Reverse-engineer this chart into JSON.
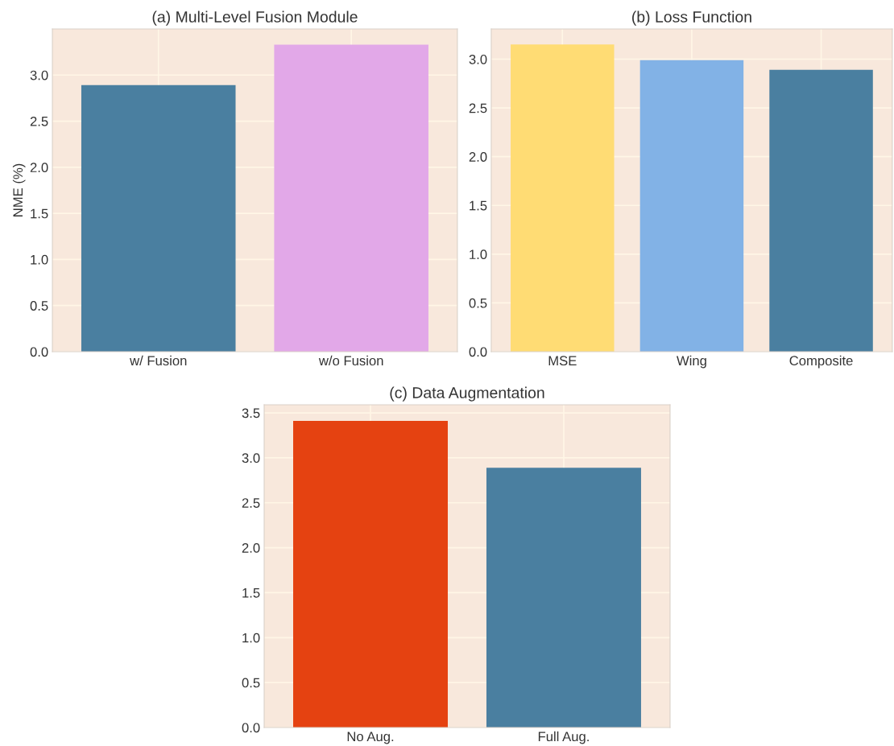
{
  "chart_data": [
    {
      "type": "bar",
      "title": "(a) Multi-Level Fusion Module",
      "ylabel": "NME (%)",
      "categories": [
        "w/ Fusion",
        "w/o Fusion"
      ],
      "values": [
        2.89,
        3.33
      ],
      "colors": [
        "#4a7fa0",
        "#e2a8e8"
      ],
      "ylim": [
        0,
        3.5
      ],
      "yticks": [
        {
          "value": 0,
          "label": "0.0"
        },
        0.5,
        {
          "value": 1,
          "label": "1.0"
        },
        1.5,
        {
          "value": 2,
          "label": "2.0"
        },
        2.5,
        {
          "value": 3,
          "label": "3.0"
        }
      ],
      "grid": true
    },
    {
      "type": "bar",
      "title": "(b) Loss Function",
      "categories": [
        "MSE",
        "Wing",
        "Composite"
      ],
      "values": [
        3.15,
        2.99,
        2.89
      ],
      "colors": [
        "#ffdc74",
        "#82b2e6",
        "#4a7fa0"
      ],
      "ylim": [
        0,
        3.31
      ],
      "yticks": [
        {
          "value": 0,
          "label": "0.0"
        },
        0.5,
        {
          "value": 1,
          "label": "1.0"
        },
        1.5,
        {
          "value": 2,
          "label": "2.0"
        },
        2.5,
        {
          "value": 3,
          "label": "3.0"
        }
      ],
      "grid": true
    },
    {
      "type": "bar",
      "title": "(c) Data Augmentation",
      "categories": [
        "No Aug.",
        "Full Aug."
      ],
      "values": [
        3.41,
        2.89
      ],
      "colors": [
        "#e54211",
        "#4a7fa0"
      ],
      "ylim": [
        0,
        3.59
      ],
      "yticks": [
        {
          "value": 0,
          "label": "0.0"
        },
        0.5,
        {
          "value": 1,
          "label": "1.0"
        },
        1.5,
        {
          "value": 2,
          "label": "2.0"
        },
        2.5,
        {
          "value": 3,
          "label": "3.0"
        },
        3.5
      ],
      "grid": true
    }
  ]
}
